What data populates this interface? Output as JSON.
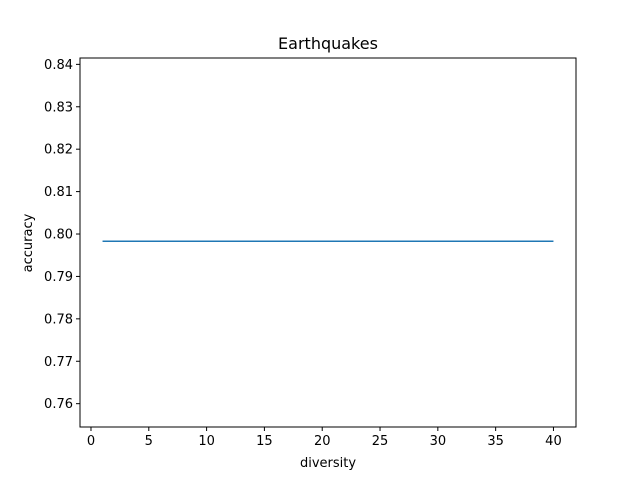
{
  "chart_data": {
    "type": "line",
    "title": "Earthquakes",
    "xlabel": "diversity",
    "ylabel": "accuracy",
    "xlim": [
      -0.95,
      41.95
    ],
    "ylim": [
      0.7545,
      0.8415
    ],
    "xticks": [
      0,
      5,
      10,
      15,
      20,
      25,
      30,
      35,
      40
    ],
    "yticks": [
      0.76,
      0.77,
      0.78,
      0.79,
      0.8,
      0.81,
      0.82,
      0.83,
      0.84
    ],
    "xtick_labels": [
      "0",
      "5",
      "10",
      "15",
      "20",
      "25",
      "30",
      "35",
      "40"
    ],
    "ytick_labels": [
      "0.76",
      "0.77",
      "0.78",
      "0.79",
      "0.80",
      "0.81",
      "0.82",
      "0.83",
      "0.84"
    ],
    "grid": false,
    "series": [
      {
        "color": "#1f77b4",
        "x": [
          1,
          40
        ],
        "y": [
          0.7983,
          0.7983
        ]
      }
    ]
  }
}
